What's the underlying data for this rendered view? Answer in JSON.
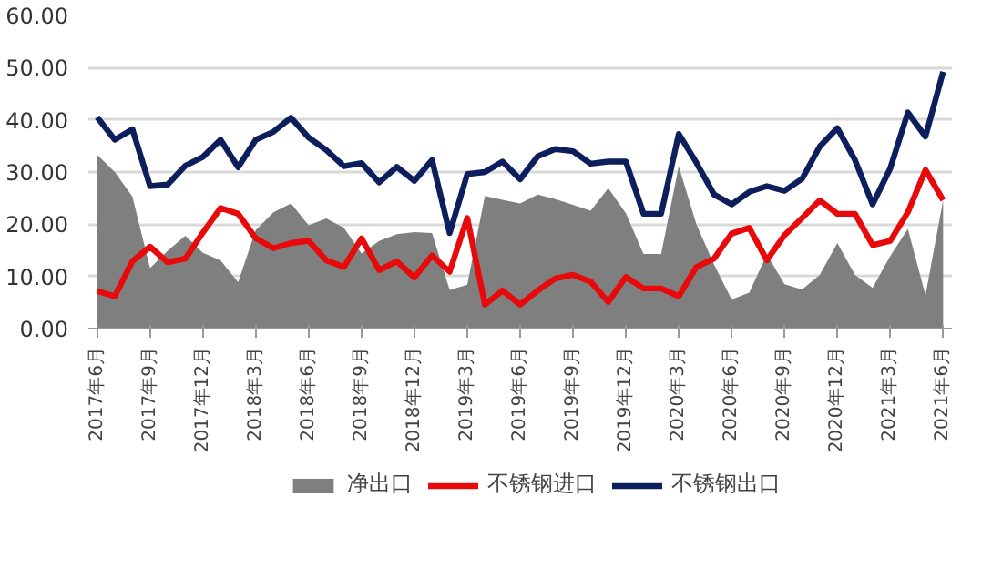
{
  "chart_data": {
    "type": "line",
    "categories": [
      "2017年6月",
      null,
      null,
      "2017年9月",
      null,
      null,
      "2017年12月",
      null,
      null,
      "2018年3月",
      null,
      null,
      "2018年6月",
      null,
      null,
      "2018年9月",
      null,
      null,
      "2018年12月",
      null,
      null,
      "2019年3月",
      null,
      null,
      "2019年6月",
      null,
      null,
      "2019年9月",
      null,
      null,
      "2019年12月",
      null,
      null,
      "2020年3月",
      null,
      null,
      "2020年6月",
      null,
      null,
      "2020年9月",
      null,
      null,
      "2020年12月",
      null,
      null,
      "2021年3月",
      null,
      null,
      "2021年6月"
    ],
    "series": [
      {
        "name": "净出口",
        "type": "area",
        "color": "#7f7f7f",
        "values": [
          33.3,
          30.0,
          25.3,
          11.6,
          14.9,
          17.8,
          14.5,
          13.1,
          8.9,
          18.9,
          22.3,
          24.0,
          19.8,
          21.1,
          19.3,
          14.4,
          16.8,
          18.1,
          18.5,
          18.3,
          7.4,
          8.4,
          25.4,
          24.7,
          24.0,
          25.7,
          24.8,
          23.7,
          22.6,
          26.9,
          22.1,
          14.3,
          14.3,
          31.1,
          20.0,
          12.3,
          5.6,
          6.9,
          14.2,
          8.5,
          7.5,
          10.3,
          16.4,
          10.3,
          7.8,
          13.9,
          19.1,
          6.4,
          24.6
        ]
      },
      {
        "name": "不锈钢进口",
        "color": "#e8090b",
        "values": [
          7.2,
          6.2,
          12.9,
          15.7,
          12.7,
          13.4,
          18.4,
          23.1,
          22.0,
          17.3,
          15.4,
          16.4,
          16.8,
          13.1,
          11.8,
          17.3,
          11.2,
          12.9,
          9.8,
          14.0,
          10.9,
          21.2,
          4.6,
          7.3,
          4.6,
          7.3,
          9.6,
          10.3,
          9.0,
          5.1,
          9.9,
          7.7,
          7.7,
          6.2,
          11.8,
          13.4,
          18.2,
          19.3,
          13.1,
          17.9,
          21.2,
          24.6,
          22.0,
          22.0,
          16.0,
          16.8,
          22.3,
          30.4,
          24.6
        ]
      },
      {
        "name": "不锈钢出口",
        "color": "#0c1f5c",
        "values": [
          40.5,
          36.2,
          38.2,
          27.3,
          27.6,
          31.2,
          32.9,
          36.2,
          30.9,
          36.2,
          37.7,
          40.4,
          36.6,
          34.2,
          31.1,
          31.7,
          28.0,
          31.0,
          28.3,
          32.3,
          18.3,
          29.6,
          30.0,
          32.0,
          28.6,
          33.0,
          34.4,
          34.0,
          31.6,
          32.0,
          32.0,
          22.0,
          22.0,
          37.3,
          31.8,
          25.7,
          23.8,
          26.2,
          27.3,
          26.4,
          28.7,
          34.9,
          38.4,
          32.3,
          23.8,
          30.7,
          41.4,
          36.8,
          49.2
        ]
      }
    ],
    "ylim": [
      0,
      60
    ],
    "yticks": [
      {
        "value": 0,
        "label": "0.00"
      },
      {
        "value": 10,
        "label": "10.00"
      },
      {
        "value": 20,
        "label": "20.00"
      },
      {
        "value": 30,
        "label": "30.00"
      },
      {
        "value": 40,
        "label": "40.00"
      },
      {
        "value": 50,
        "label": "50.00"
      },
      {
        "value": 60,
        "label": "60.00"
      }
    ],
    "grid": "y",
    "legend": "bottom",
    "line_style": "solid",
    "marker": "none"
  }
}
